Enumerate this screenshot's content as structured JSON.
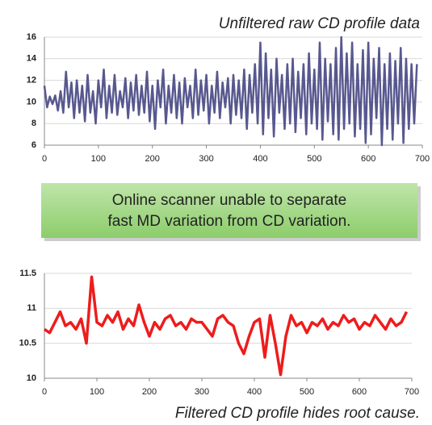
{
  "chart_data": [
    {
      "type": "line",
      "title": "Unfiltered raw CD profile data",
      "x": [
        0,
        5,
        10,
        15,
        20,
        25,
        30,
        35,
        40,
        45,
        50,
        55,
        60,
        65,
        70,
        75,
        80,
        85,
        90,
        95,
        100,
        105,
        110,
        115,
        120,
        125,
        130,
        135,
        140,
        145,
        150,
        155,
        160,
        165,
        170,
        175,
        180,
        185,
        190,
        195,
        200,
        205,
        210,
        215,
        220,
        225,
        230,
        235,
        240,
        245,
        250,
        255,
        260,
        265,
        270,
        275,
        280,
        285,
        290,
        295,
        300,
        305,
        310,
        315,
        320,
        325,
        330,
        335,
        340,
        345,
        350,
        355,
        360,
        365,
        370,
        375,
        380,
        385,
        390,
        395,
        400,
        405,
        410,
        415,
        420,
        425,
        430,
        435,
        440,
        445,
        450,
        455,
        460,
        465,
        470,
        475,
        480,
        485,
        490,
        495,
        500,
        505,
        510,
        515,
        520,
        525,
        530,
        535,
        540,
        545,
        550,
        555,
        560,
        565,
        570,
        575,
        580,
        585,
        590,
        595,
        600,
        605,
        610,
        615,
        620,
        625,
        630,
        635,
        640,
        645,
        650,
        655,
        660,
        665,
        670,
        675,
        680,
        685,
        690
      ],
      "series": [
        {
          "color": "#58588f",
          "values": [
            11.5,
            9.5,
            10.5,
            9.8,
            10.6,
            9.2,
            11.0,
            9.0,
            12.8,
            9.5,
            11.8,
            8.5,
            12.0,
            9.0,
            11.5,
            8.2,
            12.5,
            9.0,
            11.0,
            8.0,
            12.0,
            9.5,
            13.0,
            8.5,
            11.5,
            9.0,
            12.5,
            8.8,
            11.0,
            9.5,
            12.2,
            8.5,
            11.8,
            9.2,
            12.5,
            8.8,
            11.5,
            9.0,
            12.8,
            8.2,
            11.5,
            7.5,
            12.0,
            9.5,
            13.0,
            8.0,
            11.5,
            9.0,
            12.5,
            8.5,
            11.8,
            8.0,
            12.2,
            9.5,
            11.5,
            8.5,
            13.0,
            8.8,
            12.0,
            9.2,
            12.5,
            8.0,
            11.5,
            9.0,
            12.8,
            8.5,
            11.8,
            9.5,
            12.2,
            8.0,
            12.5,
            8.8,
            12.0,
            8.5,
            13.0,
            7.5,
            12.5,
            9.0,
            13.5,
            8.0,
            15.5,
            7.0,
            14.5,
            8.5,
            13.0,
            6.8,
            14.0,
            9.0,
            12.5,
            7.5,
            13.5,
            8.0,
            14.0,
            7.2,
            12.8,
            8.5,
            13.5,
            7.0,
            14.5,
            8.0,
            13.0,
            7.5,
            15.5,
            6.5,
            14.0,
            8.2,
            13.5,
            7.0,
            15.0,
            6.5,
            16.0,
            7.5,
            14.5,
            8.0,
            15.5,
            6.8,
            13.5,
            7.5,
            14.8,
            6.2,
            15.5,
            7.0,
            14.0,
            8.5,
            15.0,
            6.0,
            13.5,
            7.5,
            14.5,
            6.5,
            13.8,
            8.0,
            15.0,
            6.2,
            14.0,
            7.5,
            13.5,
            8.0,
            13.5
          ]
        }
      ],
      "xlim": [
        0,
        700
      ],
      "xticks": [
        0,
        100,
        200,
        300,
        400,
        500,
        600,
        700
      ],
      "ylim": [
        6,
        16
      ],
      "yticks": [
        6,
        8,
        10,
        12,
        14,
        16
      ],
      "grid": true
    },
    {
      "type": "line",
      "title": "Filtered CD profile hides root cause.",
      "x": [
        0,
        10,
        20,
        30,
        40,
        50,
        60,
        70,
        80,
        90,
        100,
        110,
        120,
        130,
        140,
        150,
        160,
        170,
        180,
        190,
        200,
        210,
        220,
        230,
        240,
        250,
        260,
        270,
        280,
        290,
        300,
        310,
        320,
        330,
        340,
        350,
        360,
        370,
        380,
        390,
        400,
        410,
        420,
        430,
        440,
        450,
        460,
        470,
        480,
        490,
        500,
        510,
        520,
        530,
        540,
        550,
        560,
        570,
        580,
        590,
        600,
        610,
        620,
        630,
        640,
        650,
        660,
        670,
        680,
        690
      ],
      "series": [
        {
          "color": "#ee1c1c",
          "values": [
            10.7,
            10.65,
            10.8,
            10.95,
            10.75,
            10.8,
            10.7,
            10.85,
            10.5,
            11.45,
            10.8,
            10.75,
            10.9,
            10.8,
            10.95,
            10.7,
            10.85,
            10.75,
            11.05,
            10.8,
            10.6,
            10.8,
            10.7,
            10.85,
            10.9,
            10.75,
            10.8,
            10.7,
            10.85,
            10.8,
            10.8,
            10.7,
            10.6,
            10.85,
            10.9,
            10.8,
            10.75,
            10.5,
            10.35,
            10.6,
            10.8,
            10.85,
            10.3,
            10.9,
            10.5,
            10.05,
            10.6,
            10.9,
            10.75,
            10.8,
            10.65,
            10.8,
            10.75,
            10.85,
            10.7,
            10.8,
            10.75,
            10.9,
            10.8,
            10.85,
            10.7,
            10.8,
            10.75,
            10.9,
            10.8,
            10.7,
            10.85,
            10.75,
            10.8,
            10.95
          ]
        }
      ],
      "xlim": [
        0,
        700
      ],
      "xticks": [
        0,
        100,
        200,
        300,
        400,
        500,
        600,
        700
      ],
      "ylim": [
        10,
        11.5
      ],
      "yticks": [
        10,
        10.5,
        11,
        11.5
      ],
      "grid": true
    }
  ],
  "callout": [
    "Online scanner unable to separate",
    "fast MD variation  from CD variation."
  ]
}
